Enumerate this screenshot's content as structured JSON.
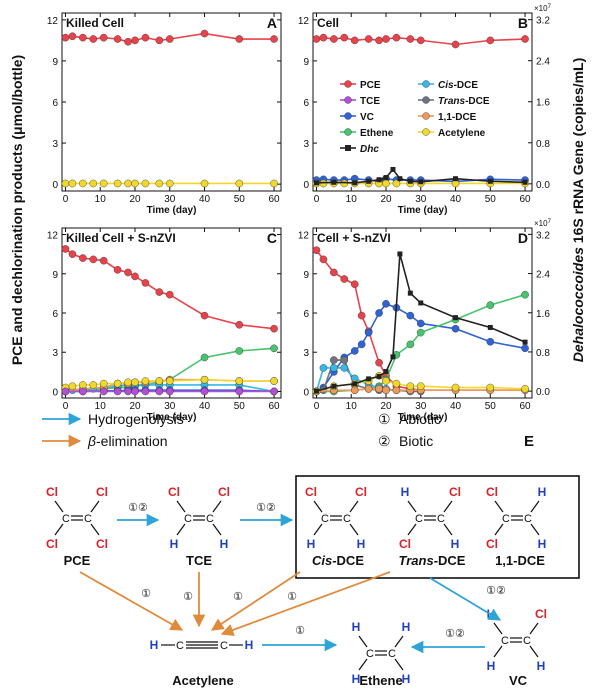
{
  "y_axis_left_label": "PCE and dechlorination products (μmol/bottle)",
  "y_axis_right_label_italic": "Dehalococcoides",
  "y_axis_right_label_rest": " 16S rRNA Gene (copies/mL)",
  "exponent_label": "×10",
  "exponent_power": "7",
  "legend": {
    "items": [
      {
        "label": "PCE",
        "color": "#e8434b",
        "italic": false
      },
      {
        "label": "TCE",
        "color": "#b24fd6",
        "italic": false
      },
      {
        "label": "VC",
        "color": "#2f63d6",
        "italic": false
      },
      {
        "label": "Ethene",
        "color": "#48c46e",
        "italic": false
      },
      {
        "label": "Cis",
        "suffix": "-DCE",
        "color": "#39b7e6",
        "italic": true
      },
      {
        "label": "Trans",
        "suffix": "-DCE",
        "color": "#6f7480",
        "italic": true
      },
      {
        "label": "1,1-DCE",
        "color": "#ef9a5a",
        "italic": false
      },
      {
        "label": "Acetylene",
        "color": "#f2d82a",
        "italic": false
      },
      {
        "label": "Dhc",
        "color": "#222222",
        "italic": true
      }
    ]
  },
  "chart_data": [
    {
      "type": "line",
      "panel": "A",
      "title": "Killed Cell",
      "xlabel": "Time (day)",
      "xlim": [
        -1,
        62
      ],
      "ylim": [
        -0.5,
        12.5
      ],
      "xticks": [
        0,
        10,
        20,
        30,
        40,
        50,
        60
      ],
      "yticks": [
        0,
        3,
        6,
        9,
        12
      ],
      "series": [
        {
          "name": "PCE",
          "color": "#e8434b",
          "x": [
            0,
            2,
            5,
            8,
            11,
            15,
            18,
            20,
            23,
            27,
            30,
            40,
            50,
            60
          ],
          "y": [
            10.7,
            10.8,
            10.7,
            10.6,
            10.7,
            10.6,
            10.4,
            10.5,
            10.7,
            10.5,
            10.6,
            11.0,
            10.6,
            10.6
          ]
        },
        {
          "name": "Acetylene",
          "color": "#f2d82a",
          "x": [
            0,
            2,
            5,
            8,
            11,
            15,
            18,
            20,
            23,
            27,
            30,
            40,
            50,
            60
          ],
          "y": [
            0.05,
            0.05,
            0.05,
            0.05,
            0.05,
            0.05,
            0.05,
            0.05,
            0.05,
            0.05,
            0.05,
            0.05,
            0.05,
            0.05
          ]
        }
      ]
    },
    {
      "type": "line",
      "panel": "B",
      "title": "Cell",
      "xlabel": "Time (day)",
      "xlim": [
        -1,
        62
      ],
      "ylim": [
        -0.5,
        12.5
      ],
      "xticks": [
        0,
        10,
        20,
        30,
        40,
        50,
        60
      ],
      "yticks": [
        0,
        3,
        6,
        9,
        12
      ],
      "y2lim": [
        -0.14,
        3.33
      ],
      "y2ticks": [
        0.0,
        0.8,
        1.6,
        2.4,
        3.2
      ],
      "series": [
        {
          "name": "PCE",
          "color": "#e8434b",
          "x": [
            0,
            2,
            5,
            8,
            11,
            15,
            18,
            20,
            23,
            27,
            30,
            40,
            50,
            60
          ],
          "y": [
            10.6,
            10.7,
            10.6,
            10.7,
            10.5,
            10.6,
            10.5,
            10.6,
            10.7,
            10.6,
            10.5,
            10.2,
            10.5,
            10.6
          ]
        },
        {
          "name": "VC",
          "color": "#2f63d6",
          "x": [
            0,
            2,
            5,
            8,
            11,
            15,
            18,
            20,
            23,
            27,
            30,
            40,
            50,
            60
          ],
          "y": [
            0.3,
            0.35,
            0.3,
            0.3,
            0.4,
            0.3,
            0.2,
            0.4,
            0.3,
            0.3,
            0.3,
            0.2,
            0.35,
            0.3
          ]
        },
        {
          "name": "Acetylene",
          "color": "#f2d82a",
          "x": [
            0,
            2,
            5,
            8,
            11,
            15,
            18,
            20,
            23,
            27,
            30,
            40,
            50,
            60
          ],
          "y": [
            0.05,
            0.05,
            0.05,
            0.05,
            0.05,
            0.05,
            0.05,
            0.05,
            0.05,
            0.05,
            0.05,
            0.05,
            0.05,
            0.05
          ]
        },
        {
          "name": "Dhc",
          "color": "#222222",
          "axis": "right",
          "x": [
            0,
            5,
            11,
            15,
            18,
            20,
            22,
            24,
            27,
            30,
            40,
            50,
            60
          ],
          "y": [
            0.02,
            0.03,
            0.02,
            0.05,
            0.08,
            0.12,
            0.28,
            0.1,
            0.05,
            0.04,
            0.1,
            0.05,
            0.03
          ]
        }
      ]
    },
    {
      "type": "line",
      "panel": "C",
      "title": "Killed Cell + S-nZVI",
      "xlabel": "Time (day)",
      "xlim": [
        -1,
        62
      ],
      "ylim": [
        -0.5,
        12.5
      ],
      "xticks": [
        0,
        10,
        20,
        30,
        40,
        50,
        60
      ],
      "yticks": [
        0,
        3,
        6,
        9,
        12
      ],
      "series": [
        {
          "name": "PCE",
          "color": "#e8434b",
          "x": [
            0,
            2,
            5,
            8,
            11,
            15,
            18,
            20,
            23,
            27,
            30,
            40,
            50,
            60
          ],
          "y": [
            10.9,
            10.5,
            10.2,
            10.1,
            10.0,
            9.3,
            9.1,
            8.8,
            8.3,
            7.6,
            7.4,
            5.8,
            5.1,
            4.8
          ]
        },
        {
          "name": "Ethene",
          "color": "#48c46e",
          "x": [
            0,
            5,
            11,
            15,
            18,
            20,
            23,
            27,
            30,
            40,
            50,
            60
          ],
          "y": [
            0.0,
            0.1,
            0.2,
            0.3,
            0.3,
            0.4,
            0.5,
            0.7,
            0.9,
            2.6,
            3.1,
            3.3
          ]
        },
        {
          "name": "Cis-DCE",
          "color": "#39b7e6",
          "x": [
            0,
            2,
            5,
            8,
            11,
            15,
            18,
            20,
            23,
            27,
            30,
            40,
            50,
            60
          ],
          "y": [
            0.1,
            0.1,
            0.2,
            0.2,
            0.3,
            0.4,
            0.5,
            0.5,
            0.5,
            0.5,
            0.5,
            0.5,
            0.5,
            0.0
          ]
        },
        {
          "name": "VC",
          "color": "#2f63d6",
          "x": [
            0,
            5,
            11,
            15,
            18,
            20,
            23,
            27,
            30,
            40,
            50,
            60
          ],
          "y": [
            0.0,
            0.0,
            0.05,
            0.05,
            0.1,
            0.1,
            0.1,
            0.1,
            0.1,
            0.1,
            0.1,
            0.0
          ]
        },
        {
          "name": "1,1-DCE",
          "color": "#ef9a5a",
          "x": [
            0,
            5,
            11,
            15,
            18,
            20,
            23,
            27,
            30,
            40,
            50,
            60
          ],
          "y": [
            0.05,
            0.2,
            0.3,
            0.6,
            0.6,
            0.7,
            0.7,
            0.8,
            0.9,
            0.9,
            0.8,
            0.8
          ]
        },
        {
          "name": "Acetylene",
          "color": "#f2d82a",
          "x": [
            0,
            2,
            5,
            8,
            11,
            15,
            18,
            20,
            23,
            27,
            30,
            40,
            50,
            60
          ],
          "y": [
            0.3,
            0.4,
            0.5,
            0.5,
            0.6,
            0.6,
            0.7,
            0.7,
            0.8,
            0.8,
            0.8,
            0.9,
            0.8,
            0.8
          ]
        },
        {
          "name": "TCE",
          "color": "#b24fd6",
          "x": [
            0,
            5,
            11,
            15,
            18,
            20,
            23,
            27,
            30,
            40,
            50,
            60
          ],
          "y": [
            0.0,
            0.0,
            0.0,
            0.0,
            0.0,
            0.0,
            0.0,
            0.0,
            0.0,
            0.0,
            0.0,
            0.0
          ]
        }
      ]
    },
    {
      "type": "line",
      "panel": "D",
      "title": "Cell + S-nZVI",
      "xlabel": "Time (day)",
      "xlim": [
        -1,
        62
      ],
      "ylim": [
        -0.5,
        12.5
      ],
      "xticks": [
        0,
        10,
        20,
        30,
        40,
        50,
        60
      ],
      "yticks": [
        0,
        3,
        6,
        9,
        12
      ],
      "y2lim": [
        -0.14,
        3.33
      ],
      "y2ticks": [
        0.0,
        0.8,
        1.6,
        2.4,
        3.2
      ],
      "series": [
        {
          "name": "PCE",
          "color": "#e8434b",
          "x": [
            0,
            2,
            5,
            8,
            11,
            13,
            15,
            18,
            20,
            23,
            27,
            30,
            40,
            50,
            60
          ],
          "y": [
            10.8,
            10.1,
            9.1,
            8.6,
            8.2,
            5.8,
            4.6,
            2.2,
            1.2,
            0.4,
            0.2,
            0.1,
            0.1,
            0.1,
            0.1
          ]
        },
        {
          "name": "VC",
          "color": "#2f63d6",
          "x": [
            0,
            2,
            5,
            8,
            11,
            13,
            15,
            18,
            20,
            23,
            27,
            30,
            40,
            50,
            60
          ],
          "y": [
            0.0,
            0.3,
            1.5,
            2.6,
            3.1,
            3.6,
            4.5,
            6.0,
            6.7,
            6.4,
            5.8,
            5.2,
            4.8,
            3.8,
            3.3
          ]
        },
        {
          "name": "Ethene",
          "color": "#48c46e",
          "x": [
            0,
            5,
            11,
            15,
            18,
            20,
            23,
            27,
            30,
            40,
            50,
            60
          ],
          "y": [
            0.0,
            0.0,
            0.1,
            0.2,
            0.4,
            0.9,
            2.8,
            3.6,
            4.5,
            5.5,
            6.6,
            7.4
          ]
        },
        {
          "name": "Trans-DCE",
          "color": "#6f7480",
          "x": [
            0,
            2,
            5,
            8,
            11,
            15,
            18,
            20,
            23,
            27,
            30
          ],
          "y": [
            0.0,
            0.1,
            2.4,
            2.4,
            0.5,
            0.2,
            0.1,
            0.1,
            0.1,
            0.0,
            0.0
          ]
        },
        {
          "name": "Cis-DCE",
          "color": "#39b7e6",
          "x": [
            0,
            2,
            5,
            8,
            11,
            15,
            18,
            20,
            23
          ],
          "y": [
            0.0,
            1.8,
            1.8,
            1.8,
            1.0,
            0.5,
            0.3,
            0.2,
            0.1
          ]
        },
        {
          "name": "1,1-DCE",
          "color": "#ef9a5a",
          "x": [
            0,
            5,
            11,
            15,
            18,
            20,
            23,
            27,
            30,
            40,
            50,
            60
          ],
          "y": [
            0.0,
            0.1,
            0.1,
            0.2,
            0.2,
            0.1,
            0.1,
            0.1,
            0.1,
            0.1,
            0.1,
            0.1
          ]
        },
        {
          "name": "Acetylene",
          "color": "#f2d82a",
          "x": [
            0,
            5,
            11,
            15,
            18,
            20,
            23,
            27,
            30,
            40,
            50,
            60
          ],
          "y": [
            0.0,
            0.4,
            0.6,
            0.8,
            1.2,
            0.8,
            0.6,
            0.4,
            0.4,
            0.3,
            0.3,
            0.2
          ]
        },
        {
          "name": "Dhc",
          "color": "#222222",
          "axis": "right",
          "x": [
            0,
            5,
            11,
            15,
            18,
            20,
            22,
            24,
            27,
            30,
            40,
            50,
            60
          ],
          "y": [
            0.0,
            0.1,
            0.15,
            0.25,
            0.3,
            0.4,
            0.7,
            2.8,
            2.0,
            1.8,
            1.5,
            1.3,
            1.0
          ]
        }
      ]
    }
  ],
  "pathway": {
    "label": "E",
    "legend": {
      "hydrogenolysis": "Hydrogenolysis",
      "beta_symbol": "β",
      "beta_rest": "-elimination",
      "abiotic": "Abiotic",
      "biotic": "Biotic"
    },
    "compounds": {
      "pce": "PCE",
      "tce": "TCE",
      "cis_italic": "Cis",
      "cis_rest": "-DCE",
      "trans_italic": "Trans",
      "trans_rest": "-DCE",
      "dce11": "1,1-DCE",
      "acetylene": "Acetylene",
      "ethene": "Ethene",
      "vc": "VC"
    },
    "markers": {
      "one": "①",
      "two": "②",
      "one_two": "①②"
    },
    "atoms": {
      "cl": "Cl",
      "h": "H",
      "c": "C"
    },
    "colors": {
      "hydrogenolysis": "#2ea3d8",
      "beta": "#e08a3c",
      "cl": "#d8232a",
      "h": "#1f3fbf"
    }
  }
}
